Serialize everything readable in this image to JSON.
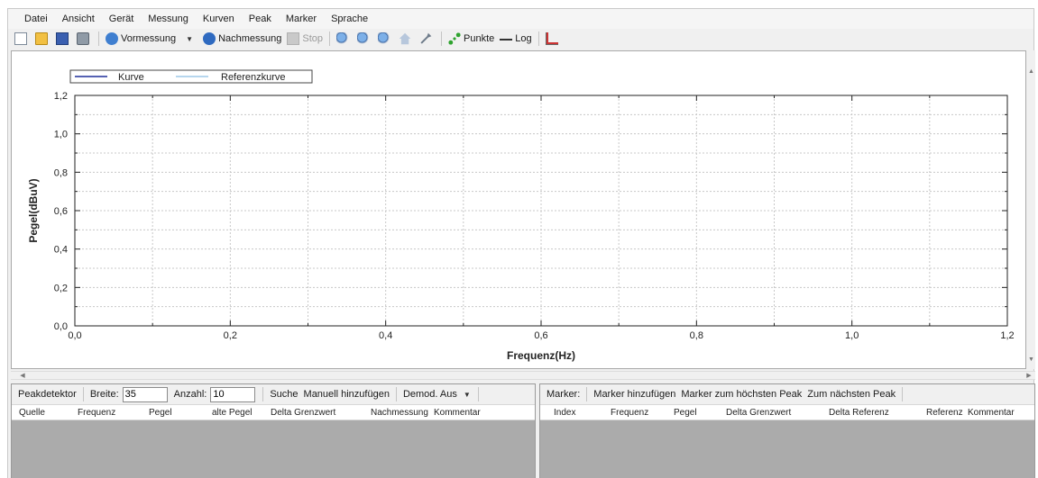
{
  "menu": [
    "Datei",
    "Ansicht",
    "Gerät",
    "Messung",
    "Kurven",
    "Peak",
    "Marker",
    "Sprache"
  ],
  "toolbar": {
    "vormessung": "Vormessung",
    "nachmessung": "Nachmessung",
    "stop": "Stop",
    "punkte": "Punkte",
    "log": "Log"
  },
  "chart_data": {
    "type": "line",
    "series": [
      {
        "name": "Kurve",
        "color": "#1f2f9a",
        "values": []
      },
      {
        "name": "Referenzkurve",
        "color": "#9ec8e8",
        "values": []
      }
    ],
    "xlabel": "Frequenz(Hz)",
    "ylabel": "Pegel(dBuV)",
    "xlim": [
      0,
      1.2
    ],
    "ylim": [
      0,
      1.2
    ],
    "xticks": [
      "0,0",
      "0,2",
      "0,4",
      "0,6",
      "0,8",
      "1,0",
      "1,2"
    ],
    "yticks": [
      "0,0",
      "0,2",
      "0,4",
      "0,6",
      "0,8",
      "1,0",
      "1,2"
    ],
    "grid": true,
    "legend": "top-left"
  },
  "peak": {
    "label": "Peakdetektor",
    "breite_label": "Breite:",
    "breite_value": "35",
    "anzahl_label": "Anzahl:",
    "anzahl_value": "10",
    "suche": "Suche",
    "manuell": "Manuell hinzufügen",
    "demod": "Demod. Aus",
    "columns": [
      "Quelle",
      "Frequenz",
      "Pegel",
      "alte Pegel",
      "Delta Grenzwert",
      "Nachmessung",
      "Kommentar"
    ]
  },
  "marker": {
    "label": "Marker:",
    "add": "Marker hinzufügen",
    "highest": "Marker zum höchsten Peak",
    "next": "Zum nächsten Peak",
    "columns": [
      "Index",
      "Frequenz",
      "Pegel",
      "Delta Grenzwert",
      "Delta Referenz",
      "Referenz",
      "Kommentar"
    ]
  }
}
